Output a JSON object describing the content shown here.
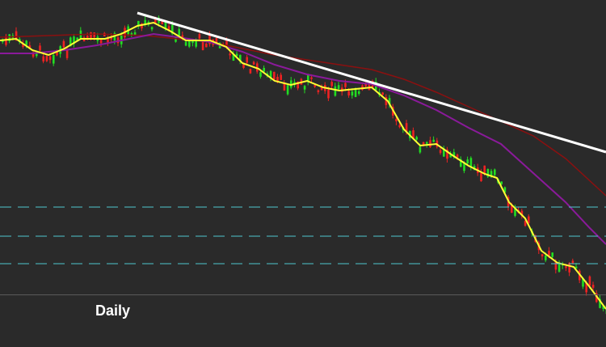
{
  "timeframe_label": "Daily"
}
